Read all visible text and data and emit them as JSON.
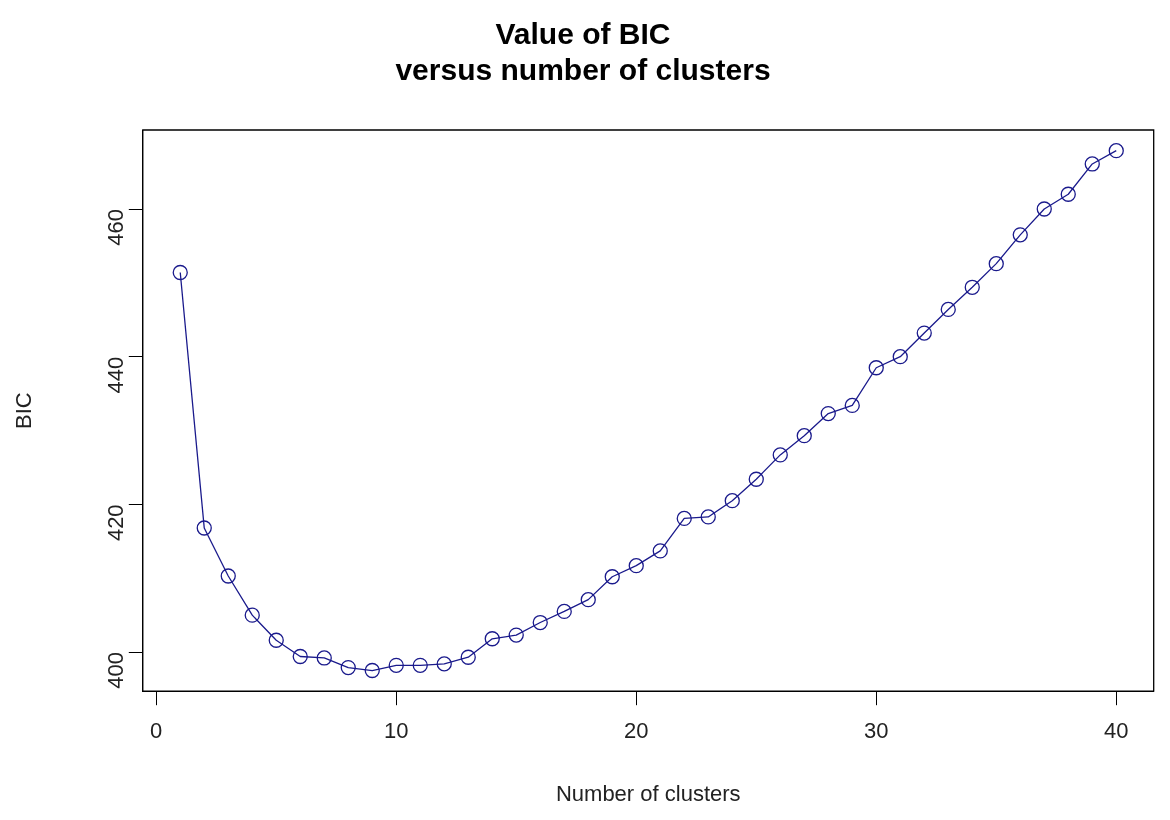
{
  "chart_data": {
    "type": "line",
    "title": "Value of BIC\nversus number of clusters",
    "xlabel": "Number of clusters",
    "ylabel": "BIC",
    "x": [
      1,
      2,
      3,
      4,
      5,
      6,
      7,
      8,
      9,
      10,
      11,
      12,
      13,
      14,
      15,
      16,
      17,
      18,
      19,
      20,
      21,
      22,
      23,
      24,
      25,
      26,
      27,
      28,
      29,
      30,
      31,
      32,
      33,
      34,
      35,
      36,
      37,
      38,
      39,
      40
    ],
    "series": [
      {
        "color": "#1a1a8c",
        "values": [
          451.4,
          416.8,
          410.3,
          405.0,
          401.6,
          399.4,
          399.2,
          397.9,
          397.5,
          398.2,
          398.2,
          398.4,
          399.3,
          401.8,
          402.3,
          404.0,
          405.5,
          407.1,
          410.2,
          411.7,
          413.7,
          418.1,
          418.3,
          420.5,
          423.4,
          426.7,
          429.3,
          432.3,
          433.4,
          438.5,
          440.0,
          443.2,
          446.4,
          449.4,
          452.6,
          456.5,
          460.0,
          462.0,
          466.1,
          467.9
        ]
      }
    ],
    "xlim": [
      -0.56,
      41.56
    ],
    "xticks": [
      0,
      10,
      20,
      30,
      40
    ],
    "ylim": [
      394.7,
      470.7
    ],
    "yticks": [
      400,
      420,
      440,
      460
    ],
    "grid": false,
    "legend": false,
    "marker": "circle",
    "line_style": "solid"
  }
}
